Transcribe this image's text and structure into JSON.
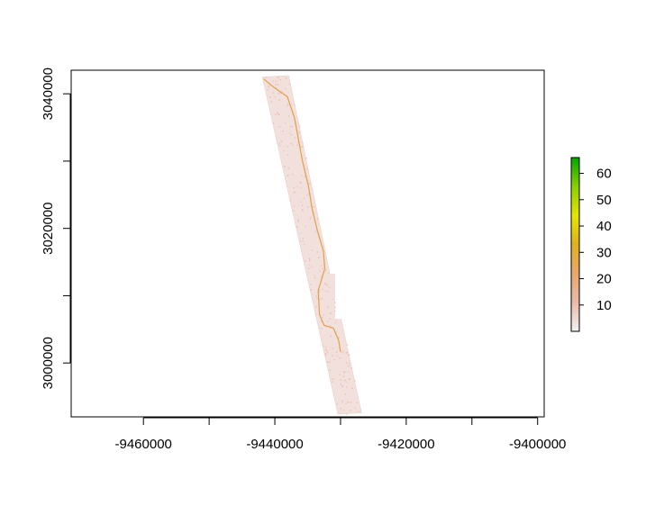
{
  "chart_data": {
    "type": "heatmap",
    "title": "",
    "xlabel": "",
    "ylabel": "",
    "xlim": [
      -9471000,
      -9399000
    ],
    "ylim": [
      2992000,
      3043500
    ],
    "x_ticks": [
      -9460000,
      -9450000,
      -9440000,
      -9430000,
      -9420000,
      -9410000,
      -9400000
    ],
    "x_tick_labels": [
      "-9460000",
      "",
      "-9440000",
      "",
      "-9420000",
      "",
      "-9400000"
    ],
    "y_ticks": [
      3000000,
      3010000,
      3020000,
      3030000,
      3040000
    ],
    "y_tick_labels": [
      "3000000",
      "",
      "3020000",
      "",
      "3040000"
    ],
    "grid": false,
    "legend": {
      "type": "colorbar",
      "placement": "right",
      "range": [
        0,
        66
      ],
      "ticks": [
        10,
        20,
        30,
        40,
        50,
        60
      ],
      "tick_labels": [
        "10",
        "20",
        "30",
        "40",
        "50",
        "60"
      ],
      "colors": [
        "#f2f2f2",
        "#eab9a8",
        "#e8a86d",
        "#e0b020",
        "#e6e600",
        "#8ad000",
        "#00a600"
      ]
    },
    "raster_footprint": [
      {
        "x": -9441900,
        "y": 3042500
      },
      {
        "x": -9437900,
        "y": 3042700
      },
      {
        "x": -9431600,
        "y": 3013200
      },
      {
        "x": -9430900,
        "y": 3013200
      },
      {
        "x": -9430900,
        "y": 3006500
      },
      {
        "x": -9429900,
        "y": 3006500
      },
      {
        "x": -9426800,
        "y": 2992600
      },
      {
        "x": -9430400,
        "y": 2992400
      }
    ],
    "channel_path": [
      {
        "x": -9441700,
        "y": 3042200
      },
      {
        "x": -9440200,
        "y": 3041000
      },
      {
        "x": -9438100,
        "y": 3039600
      },
      {
        "x": -9437000,
        "y": 3036400
      },
      {
        "x": -9436400,
        "y": 3033200
      },
      {
        "x": -9435800,
        "y": 3030000
      },
      {
        "x": -9434900,
        "y": 3026400
      },
      {
        "x": -9434300,
        "y": 3022800
      },
      {
        "x": -9433500,
        "y": 3019600
      },
      {
        "x": -9432600,
        "y": 3016600
      },
      {
        "x": -9432400,
        "y": 3014000
      },
      {
        "x": -9433400,
        "y": 3010800
      },
      {
        "x": -9433200,
        "y": 3007200
      },
      {
        "x": -9432500,
        "y": 3005600
      },
      {
        "x": -9431100,
        "y": 3005200
      },
      {
        "x": -9430300,
        "y": 3003400
      },
      {
        "x": -9430000,
        "y": 3001600
      }
    ]
  }
}
